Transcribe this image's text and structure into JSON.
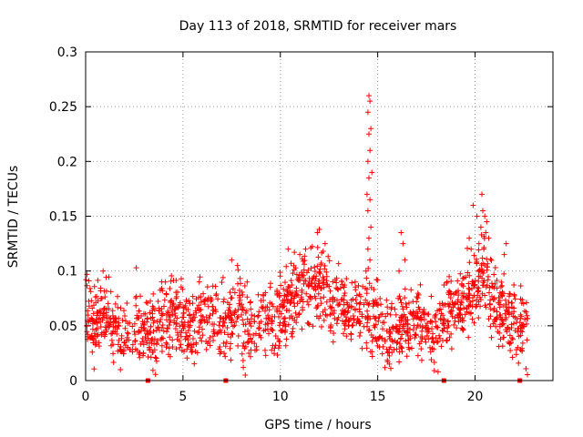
{
  "chart_data": {
    "type": "scatter",
    "title": "Day 113 of 2018, SRMTID for receiver mars",
    "xlabel": "GPS time / hours",
    "ylabel": "SRMTID / TECUs",
    "xlim": [
      0,
      24
    ],
    "ylim": [
      0,
      0.3
    ],
    "xticks": [
      0,
      5,
      10,
      15,
      20
    ],
    "xtick_labels": [
      "0",
      "5",
      "10",
      "15",
      "20"
    ],
    "yticks": [
      0,
      0.05,
      0.1,
      0.15,
      0.2,
      0.25,
      0.3
    ],
    "ytick_labels": [
      "0",
      "0.05",
      "0.1",
      "0.15",
      "0.2",
      "0.25",
      "0.3"
    ],
    "grid": true,
    "marker": "+",
    "color": "#ff0000",
    "gap_markers_x": [
      3.2,
      7.2,
      18.4,
      22.3
    ],
    "profile": [
      [
        0.0,
        0.062
      ],
      [
        0.5,
        0.05
      ],
      [
        1.0,
        0.06
      ],
      [
        1.5,
        0.045
      ],
      [
        2.0,
        0.04
      ],
      [
        2.5,
        0.048
      ],
      [
        3.0,
        0.045
      ],
      [
        3.5,
        0.04
      ],
      [
        4.0,
        0.055
      ],
      [
        4.5,
        0.06
      ],
      [
        5.0,
        0.055
      ],
      [
        5.5,
        0.05
      ],
      [
        6.0,
        0.06
      ],
      [
        6.5,
        0.055
      ],
      [
        7.0,
        0.05
      ],
      [
        7.5,
        0.06
      ],
      [
        8.0,
        0.065
      ],
      [
        8.5,
        0.05
      ],
      [
        9.0,
        0.055
      ],
      [
        9.5,
        0.06
      ],
      [
        10.0,
        0.06
      ],
      [
        10.5,
        0.075
      ],
      [
        11.0,
        0.08
      ],
      [
        11.5,
        0.085
      ],
      [
        12.0,
        0.09
      ],
      [
        12.5,
        0.075
      ],
      [
        13.0,
        0.068
      ],
      [
        13.5,
        0.065
      ],
      [
        14.0,
        0.062
      ],
      [
        14.3,
        0.07
      ],
      [
        14.6,
        0.06
      ],
      [
        15.0,
        0.055
      ],
      [
        15.5,
        0.045
      ],
      [
        16.0,
        0.05
      ],
      [
        16.5,
        0.05
      ],
      [
        17.0,
        0.055
      ],
      [
        17.5,
        0.05
      ],
      [
        18.0,
        0.048
      ],
      [
        18.5,
        0.06
      ],
      [
        19.0,
        0.07
      ],
      [
        19.5,
        0.075
      ],
      [
        20.0,
        0.085
      ],
      [
        20.5,
        0.1
      ],
      [
        21.0,
        0.07
      ],
      [
        21.5,
        0.06
      ],
      [
        22.0,
        0.055
      ],
      [
        22.5,
        0.045
      ],
      [
        22.7,
        0.04
      ]
    ],
    "spread": 0.02,
    "x_range": [
      0,
      22.7
    ],
    "highlight_points": [
      {
        "x": 14.55,
        "y": 0.26
      },
      {
        "x": 14.6,
        "y": 0.255
      },
      {
        "x": 14.5,
        "y": 0.245
      },
      {
        "x": 14.65,
        "y": 0.23
      },
      {
        "x": 14.55,
        "y": 0.225
      },
      {
        "x": 14.6,
        "y": 0.21
      },
      {
        "x": 14.5,
        "y": 0.2
      },
      {
        "x": 14.7,
        "y": 0.19
      },
      {
        "x": 14.55,
        "y": 0.185
      },
      {
        "x": 14.45,
        "y": 0.17
      },
      {
        "x": 14.6,
        "y": 0.165
      },
      {
        "x": 14.5,
        "y": 0.155
      },
      {
        "x": 14.65,
        "y": 0.14
      },
      {
        "x": 14.55,
        "y": 0.13
      },
      {
        "x": 14.5,
        "y": 0.12
      },
      {
        "x": 14.6,
        "y": 0.11
      },
      {
        "x": 14.4,
        "y": 0.1
      },
      {
        "x": 20.35,
        "y": 0.17
      },
      {
        "x": 20.4,
        "y": 0.155
      },
      {
        "x": 20.5,
        "y": 0.15
      },
      {
        "x": 20.6,
        "y": 0.145
      },
      {
        "x": 20.3,
        "y": 0.14
      },
      {
        "x": 20.55,
        "y": 0.135
      },
      {
        "x": 20.7,
        "y": 0.13
      },
      {
        "x": 20.2,
        "y": 0.125
      },
      {
        "x": 20.45,
        "y": 0.12
      },
      {
        "x": 19.9,
        "y": 0.16
      },
      {
        "x": 20.1,
        "y": 0.15
      },
      {
        "x": 19.7,
        "y": 0.13
      },
      {
        "x": 19.8,
        "y": 0.12
      },
      {
        "x": 21.6,
        "y": 0.125
      },
      {
        "x": 21.5,
        "y": 0.115
      },
      {
        "x": 16.2,
        "y": 0.135
      },
      {
        "x": 16.3,
        "y": 0.125
      },
      {
        "x": 16.4,
        "y": 0.11
      },
      {
        "x": 16.1,
        "y": 0.1
      },
      {
        "x": 12.0,
        "y": 0.138
      },
      {
        "x": 11.9,
        "y": 0.135
      },
      {
        "x": 12.3,
        "y": 0.125
      },
      {
        "x": 12.2,
        "y": 0.118
      },
      {
        "x": 11.3,
        "y": 0.12
      },
      {
        "x": 10.4,
        "y": 0.12
      },
      {
        "x": 11.0,
        "y": 0.115
      },
      {
        "x": 7.5,
        "y": 0.11
      },
      {
        "x": 7.8,
        "y": 0.105
      },
      {
        "x": 2.6,
        "y": 0.103
      },
      {
        "x": 0.9,
        "y": 0.1
      },
      {
        "x": 4.1,
        "y": 0.09
      },
      {
        "x": 8.1,
        "y": 0.012
      },
      {
        "x": 8.2,
        "y": 0.005
      },
      {
        "x": 18.1,
        "y": 0.008
      },
      {
        "x": 15.6,
        "y": 0.015
      },
      {
        "x": 16.1,
        "y": 0.017
      }
    ]
  }
}
